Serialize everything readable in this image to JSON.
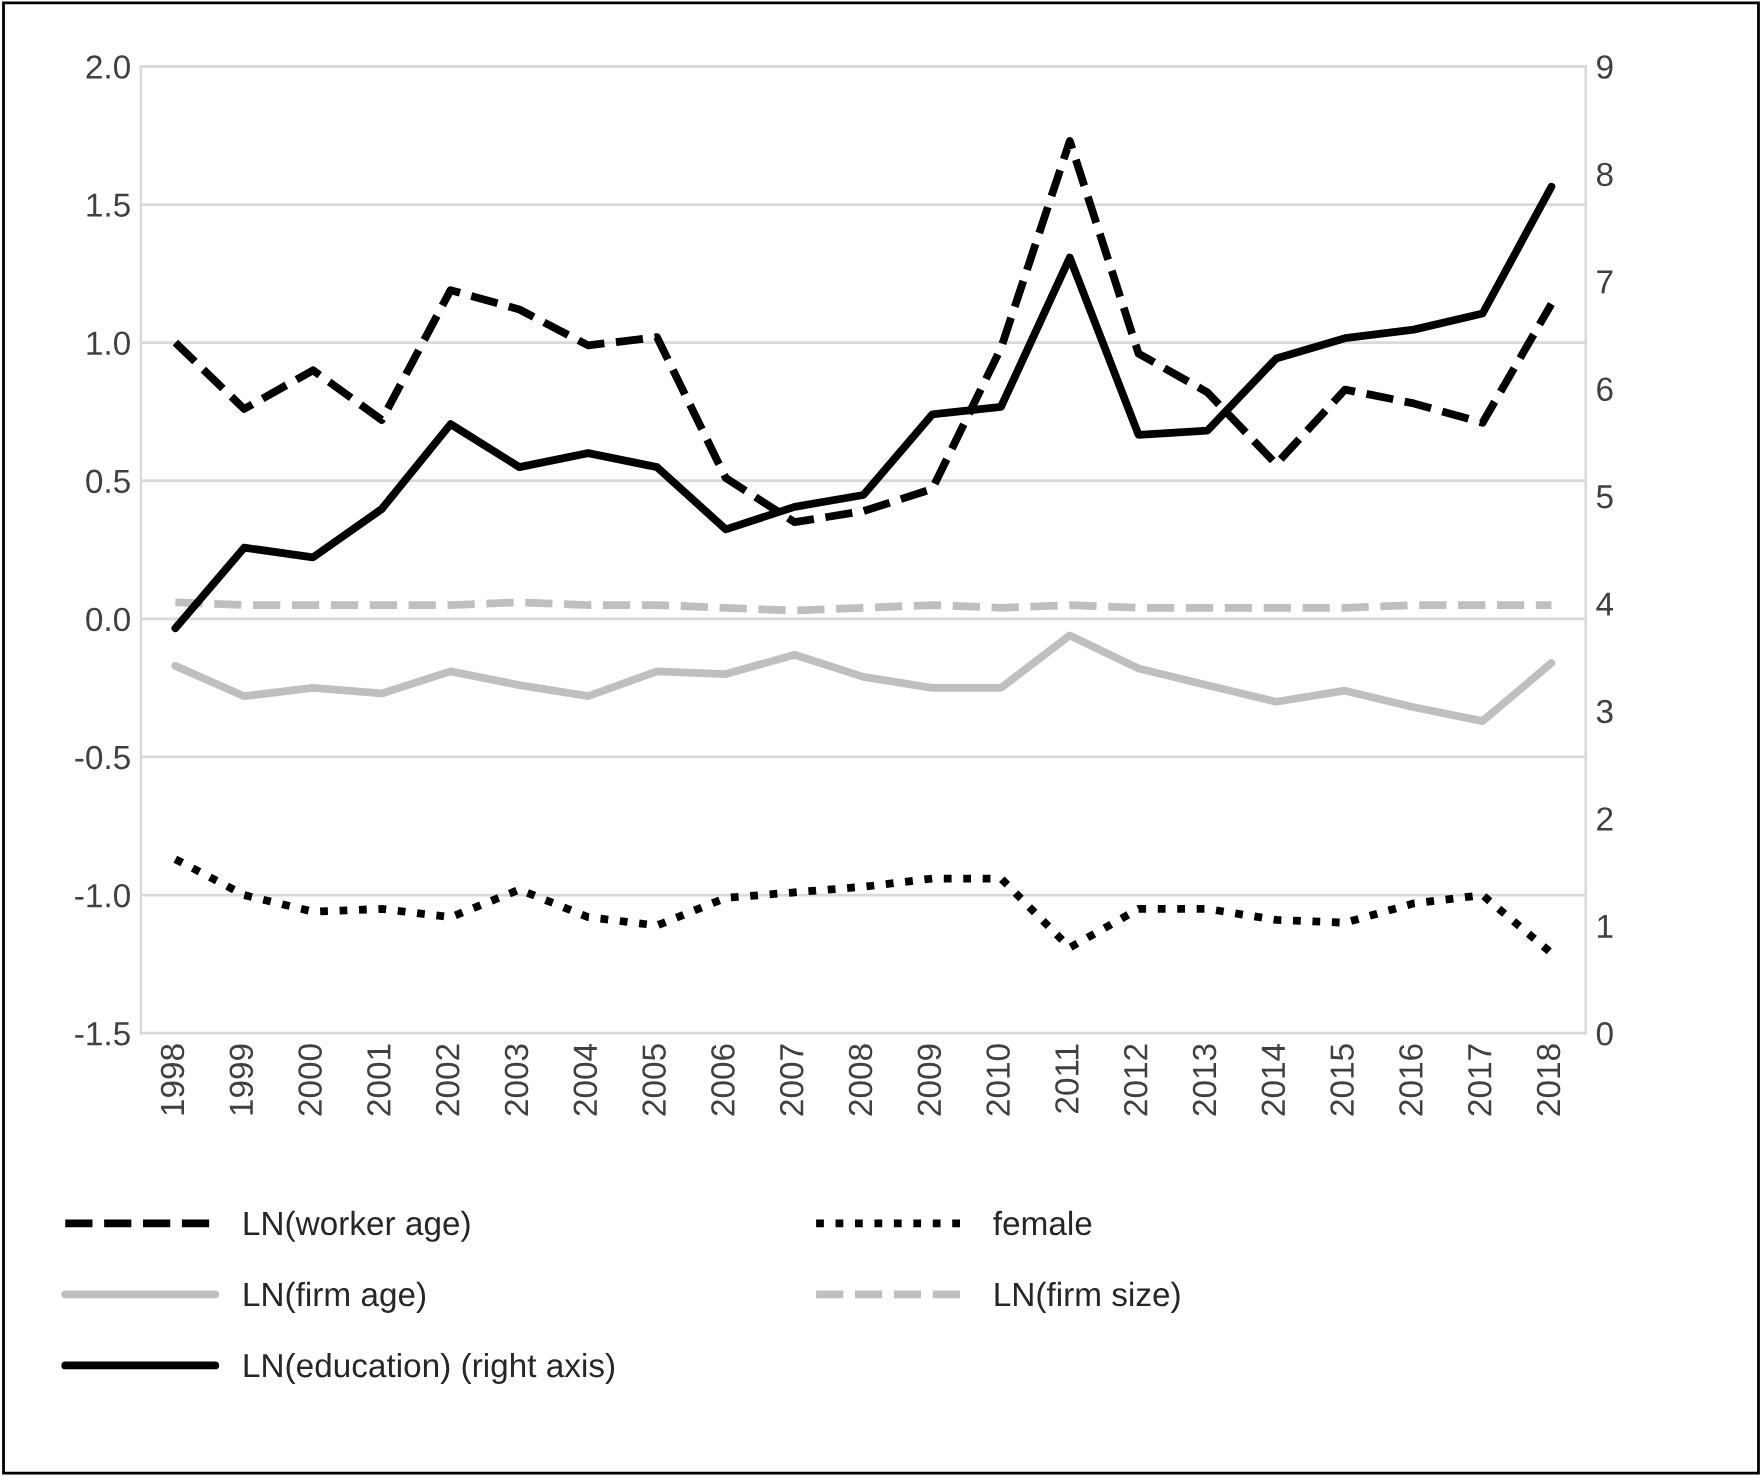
{
  "chart_data": {
    "type": "line",
    "categories": [
      "1998",
      "1999",
      "2000",
      "2001",
      "2002",
      "2003",
      "2004",
      "2005",
      "2006",
      "2007",
      "2008",
      "2009",
      "2010",
      "2011",
      "2012",
      "2013",
      "2014",
      "2015",
      "2016",
      "2017",
      "2018"
    ],
    "series": [
      {
        "name": "LN(worker age)",
        "color": "#000000",
        "line_style": "dashed",
        "values": [
          1.0,
          0.76,
          0.9,
          0.72,
          1.19,
          1.12,
          0.99,
          1.02,
          0.51,
          0.35,
          0.39,
          0.47,
          0.98,
          1.73,
          0.96,
          0.82,
          0.56,
          0.83,
          0.78,
          0.71,
          1.14
        ]
      },
      {
        "name": "female",
        "color": "#000000",
        "line_style": "dotted",
        "values": [
          -0.87,
          -1.0,
          -1.06,
          -1.05,
          -1.08,
          -0.98,
          -1.08,
          -1.11,
          -1.01,
          -0.99,
          -0.97,
          -0.94,
          -0.94,
          -1.19,
          -1.05,
          -1.05,
          -1.09,
          -1.1,
          -1.03,
          -1.0,
          -1.21
        ]
      },
      {
        "name": "LN(firm age)",
        "color": "#bfbfbf",
        "line_style": "solid",
        "values": [
          -0.17,
          -0.28,
          -0.25,
          -0.27,
          -0.19,
          -0.24,
          -0.28,
          -0.19,
          -0.2,
          -0.13,
          -0.21,
          -0.25,
          -0.25,
          -0.06,
          -0.18,
          -0.24,
          -0.3,
          -0.26,
          -0.32,
          -0.37,
          -0.16
        ]
      },
      {
        "name": "LN(firm size)",
        "color": "#bfbfbf",
        "line_style": "dashed",
        "values": [
          0.06,
          0.05,
          0.05,
          0.05,
          0.05,
          0.06,
          0.05,
          0.05,
          0.04,
          0.03,
          0.04,
          0.05,
          0.04,
          0.05,
          0.04,
          0.04,
          0.04,
          0.04,
          0.05,
          0.05,
          0.05
        ]
      },
      {
        "name": "LN(education) (right axis)",
        "color": "#000000",
        "line_style": "solid",
        "axis": "y2",
        "values": [
          3.77,
          4.52,
          4.43,
          4.88,
          5.67,
          5.27,
          5.4,
          5.27,
          4.69,
          4.9,
          5.01,
          5.76,
          5.83,
          7.22,
          5.57,
          5.61,
          6.28,
          6.47,
          6.55,
          6.7,
          7.88
        ]
      }
    ],
    "ylim": [
      -1.5,
      2.0
    ],
    "yticks": [
      -1.5,
      {
        "value": -1,
        "label": "-1.0"
      },
      -0.5,
      {
        "value": 0,
        "label": "0.0"
      },
      0.5,
      {
        "value": 1,
        "label": "1.0"
      },
      1.5,
      {
        "value": 2,
        "label": "2.0"
      }
    ],
    "y2lim": [
      0,
      9
    ],
    "y2ticks": [
      0,
      1,
      2,
      3,
      4,
      5,
      6,
      7,
      8,
      9
    ],
    "grid": "y",
    "legend": "bottom",
    "marker": "none"
  }
}
